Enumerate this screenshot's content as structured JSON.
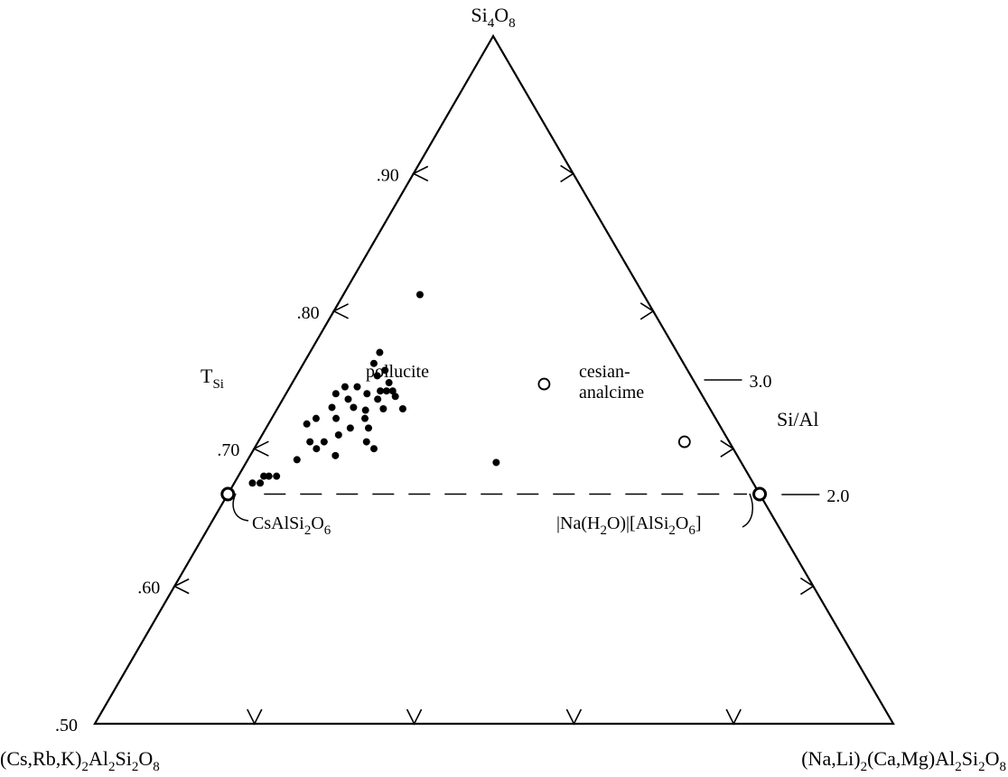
{
  "chart_data": {
    "type": "ternary-scatter",
    "apex_labels": {
      "top": {
        "main": "Si",
        "sub1": "4",
        "mid": "O",
        "sub2": "8"
      },
      "left": {
        "parts": [
          [
            "(Cs,Rb,K)",
            ""
          ],
          [
            "2",
            "sub"
          ],
          [
            "Al",
            ""
          ],
          [
            "2",
            "sub"
          ],
          [
            "Si",
            ""
          ],
          [
            "2",
            "sub"
          ],
          [
            "O",
            ""
          ],
          [
            "8",
            "sub"
          ]
        ]
      },
      "right": {
        "parts": [
          [
            "(Na,Li)",
            ""
          ],
          [
            "2",
            "sub"
          ],
          [
            "(Ca,Mg)Al",
            ""
          ],
          [
            "2",
            "sub"
          ],
          [
            "Si",
            ""
          ],
          [
            "2",
            "sub"
          ],
          [
            "O",
            ""
          ],
          [
            "8",
            "sub"
          ]
        ]
      }
    },
    "left_axis": {
      "label_main": "T",
      "label_sub": "Si",
      "ticks": [
        {
          "value": 0.5,
          "label": ".50"
        },
        {
          "value": 0.6,
          "label": ".60"
        },
        {
          "value": 0.7,
          "label": ".70"
        },
        {
          "value": 0.8,
          "label": ".80"
        },
        {
          "value": 0.9,
          "label": ".90"
        }
      ]
    },
    "right_axis": {
      "label": "Si/Al",
      "ticks": [
        {
          "value": 2.0,
          "label": "2.0"
        },
        {
          "value": 3.0,
          "label": "3.0"
        }
      ]
    },
    "bottom_ticks": [
      0.2,
      0.4,
      0.6,
      0.8
    ],
    "reference_line": {
      "style": "dashed",
      "si_al": 2.0,
      "t_si": 0.667
    },
    "region_labels": [
      {
        "text": "pollucite",
        "lines": [
          "pollucite"
        ]
      },
      {
        "text": "cesian-analcime",
        "lines": [
          "cesian-",
          "analcime"
        ]
      }
    ],
    "endmembers": [
      {
        "name": "CsAlSi2O6",
        "label_parts": [
          [
            "CsAlSi",
            ""
          ],
          [
            "2",
            "sub"
          ],
          [
            "O",
            ""
          ],
          [
            "6",
            "sub"
          ]
        ],
        "t_si": 0.667,
        "right_fraction": 0.0
      },
      {
        "name": "|Na(H2O)|[AlSi2O6]",
        "label_parts": [
          [
            "|Na(H",
            ""
          ],
          [
            "2",
            "sub"
          ],
          [
            "O)|[AlSi",
            ""
          ],
          [
            "2",
            "sub"
          ],
          [
            "O",
            ""
          ],
          [
            "6",
            "sub"
          ],
          [
            "]",
            ""
          ]
        ],
        "t_si": 0.667,
        "right_fraction": 1.0
      }
    ],
    "series": [
      {
        "name": "pollucite",
        "marker": "filled-circle",
        "points": [
          {
            "t_si": 0.675,
            "right": 0.05
          },
          {
            "t_si": 0.675,
            "right": 0.035
          },
          {
            "t_si": 0.68,
            "right": 0.05
          },
          {
            "t_si": 0.68,
            "right": 0.06
          },
          {
            "t_si": 0.68,
            "right": 0.075
          },
          {
            "t_si": 0.692,
            "right": 0.1
          },
          {
            "t_si": 0.695,
            "right": 0.175
          },
          {
            "t_si": 0.7,
            "right": 0.13
          },
          {
            "t_si": 0.7,
            "right": 0.25
          },
          {
            "t_si": 0.705,
            "right": 0.11
          },
          {
            "t_si": 0.705,
            "right": 0.14
          },
          {
            "t_si": 0.705,
            "right": 0.23
          },
          {
            "t_si": 0.71,
            "right": 0.165
          },
          {
            "t_si": 0.715,
            "right": 0.185
          },
          {
            "t_si": 0.715,
            "right": 0.225
          },
          {
            "t_si": 0.718,
            "right": 0.085
          },
          {
            "t_si": 0.722,
            "right": 0.21
          },
          {
            "t_si": 0.722,
            "right": 0.1
          },
          {
            "t_si": 0.722,
            "right": 0.145
          },
          {
            "t_si": 0.728,
            "right": 0.205
          },
          {
            "t_si": 0.729,
            "right": 0.245
          },
          {
            "t_si": 0.729,
            "right": 0.29
          },
          {
            "t_si": 0.73,
            "right": 0.175
          },
          {
            "t_si": 0.73,
            "right": 0.125
          },
          {
            "t_si": 0.736,
            "right": 0.225
          },
          {
            "t_si": 0.736,
            "right": 0.155
          },
          {
            "t_si": 0.738,
            "right": 0.265
          },
          {
            "t_si": 0.74,
            "right": 0.12
          },
          {
            "t_si": 0.74,
            "right": 0.195
          },
          {
            "t_si": 0.742,
            "right": 0.24
          },
          {
            "t_si": 0.742,
            "right": 0.255
          },
          {
            "t_si": 0.742,
            "right": 0.225
          },
          {
            "t_si": 0.745,
            "right": 0.165
          },
          {
            "t_si": 0.745,
            "right": 0.135
          },
          {
            "t_si": 0.748,
            "right": 0.24
          },
          {
            "t_si": 0.753,
            "right": 0.205
          },
          {
            "t_si": 0.757,
            "right": 0.22
          },
          {
            "t_si": 0.762,
            "right": 0.185
          },
          {
            "t_si": 0.77,
            "right": 0.19
          },
          {
            "t_si": 0.69,
            "right": 0.505
          },
          {
            "t_si": 0.812,
            "right": 0.255
          }
        ]
      },
      {
        "name": "cesian-analcime",
        "marker": "open-circle",
        "points": [
          {
            "t_si": 0.705,
            "right": 0.905
          },
          {
            "t_si": 0.747,
            "right": 0.625
          }
        ]
      }
    ]
  }
}
